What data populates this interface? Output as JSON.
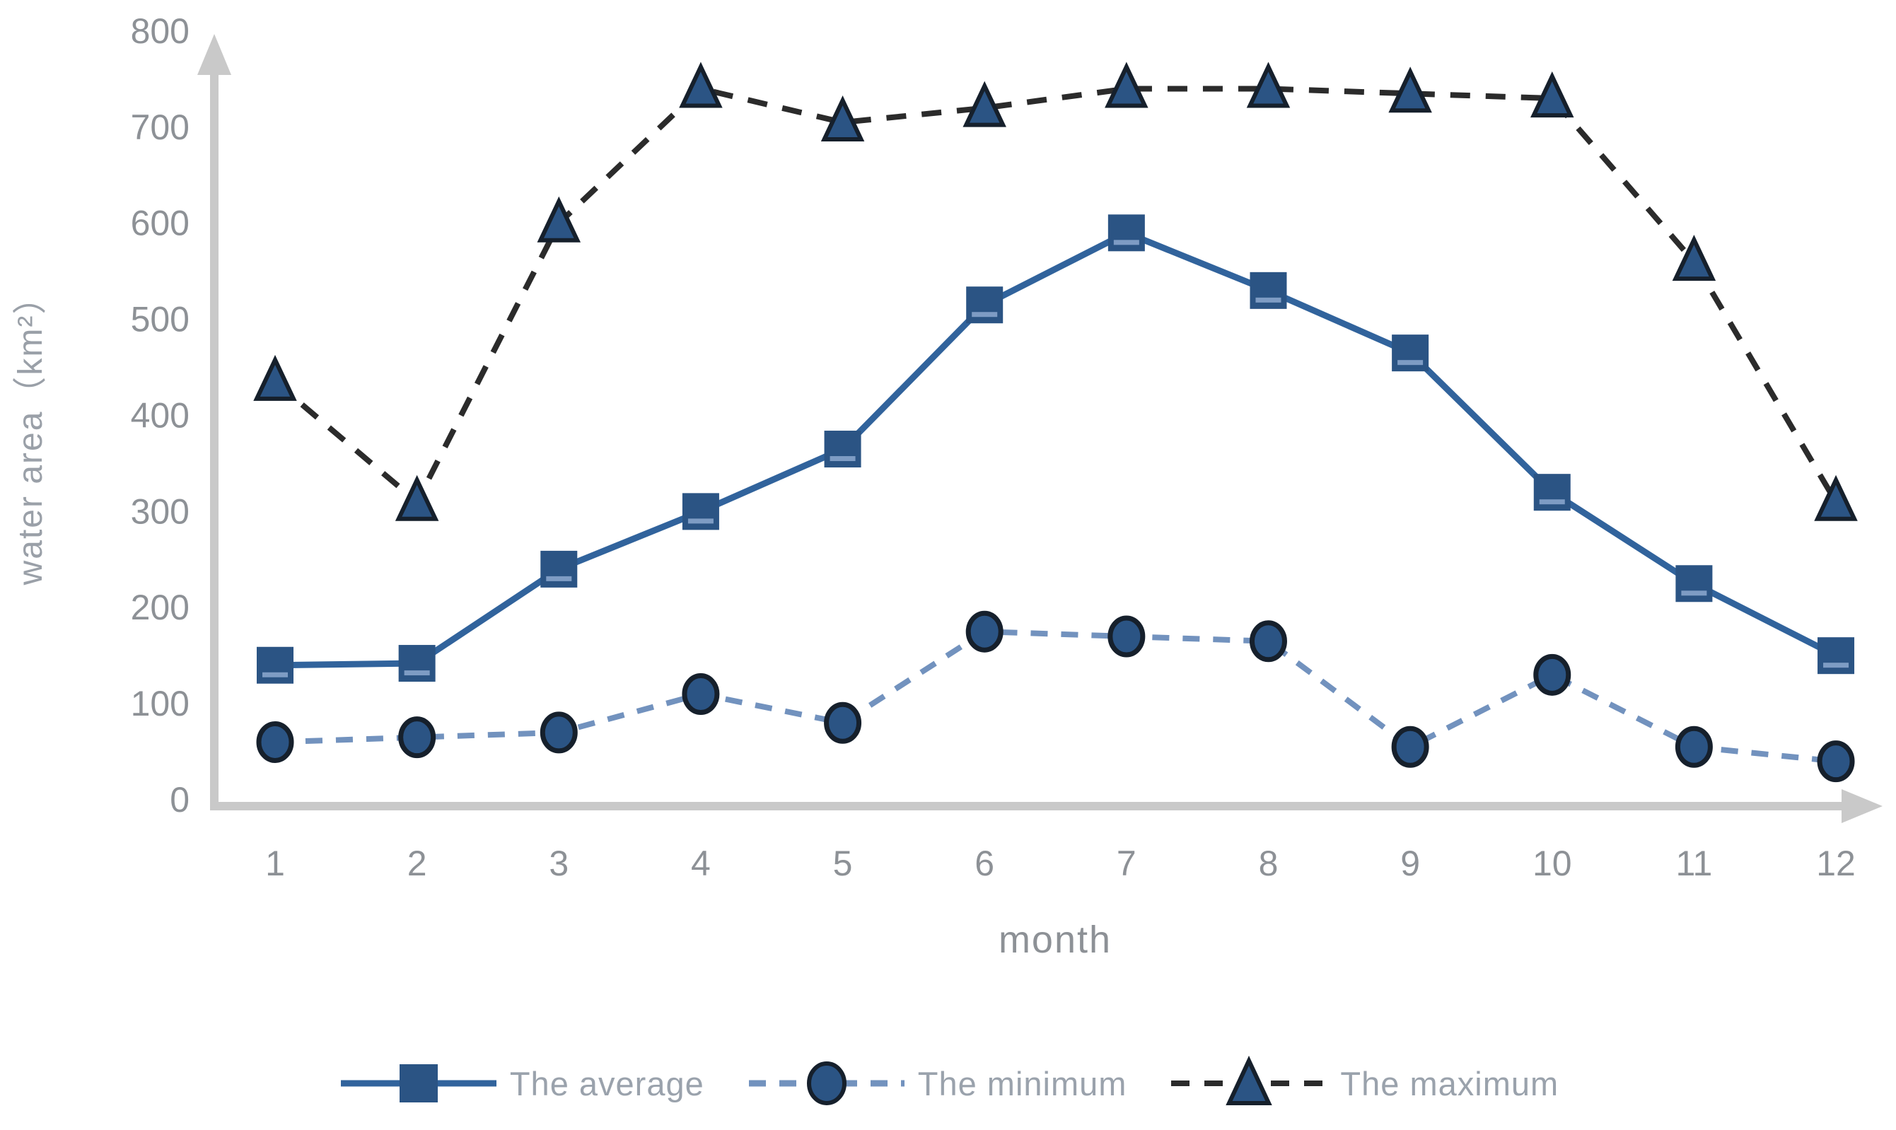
{
  "chart_data": {
    "type": "line",
    "title": "",
    "xlabel": "month",
    "ylabel": "water area（km²）",
    "categories": [
      "1",
      "2",
      "3",
      "4",
      "5",
      "6",
      "7",
      "8",
      "9",
      "10",
      "11",
      "12"
    ],
    "yticks": [
      0,
      100,
      200,
      300,
      400,
      500,
      600,
      700,
      800
    ],
    "ylim": [
      0,
      800
    ],
    "grid": false,
    "legend_position": "bottom",
    "series": [
      {
        "name": "The average",
        "marker": "square",
        "line_style": "solid",
        "line_color": "#31639c",
        "marker_color": "#2b5484",
        "values": [
          140,
          142,
          240,
          300,
          365,
          515,
          590,
          530,
          465,
          320,
          225,
          150
        ]
      },
      {
        "name": "The minimum",
        "marker": "circle",
        "line_style": "dashed",
        "line_color": "#7292be",
        "marker_color": "#2b5484",
        "values": [
          60,
          65,
          70,
          110,
          80,
          175,
          170,
          165,
          55,
          130,
          55,
          40
        ]
      },
      {
        "name": "The maximum",
        "marker": "triangle",
        "line_style": "dashed",
        "line_color": "#2b2b2b",
        "marker_color": "#2b5484",
        "values": [
          435,
          310,
          600,
          740,
          705,
          720,
          740,
          740,
          735,
          730,
          560,
          310
        ]
      }
    ],
    "axis_color": "#c9c9c9",
    "tick_label_color": "#8d9196"
  }
}
